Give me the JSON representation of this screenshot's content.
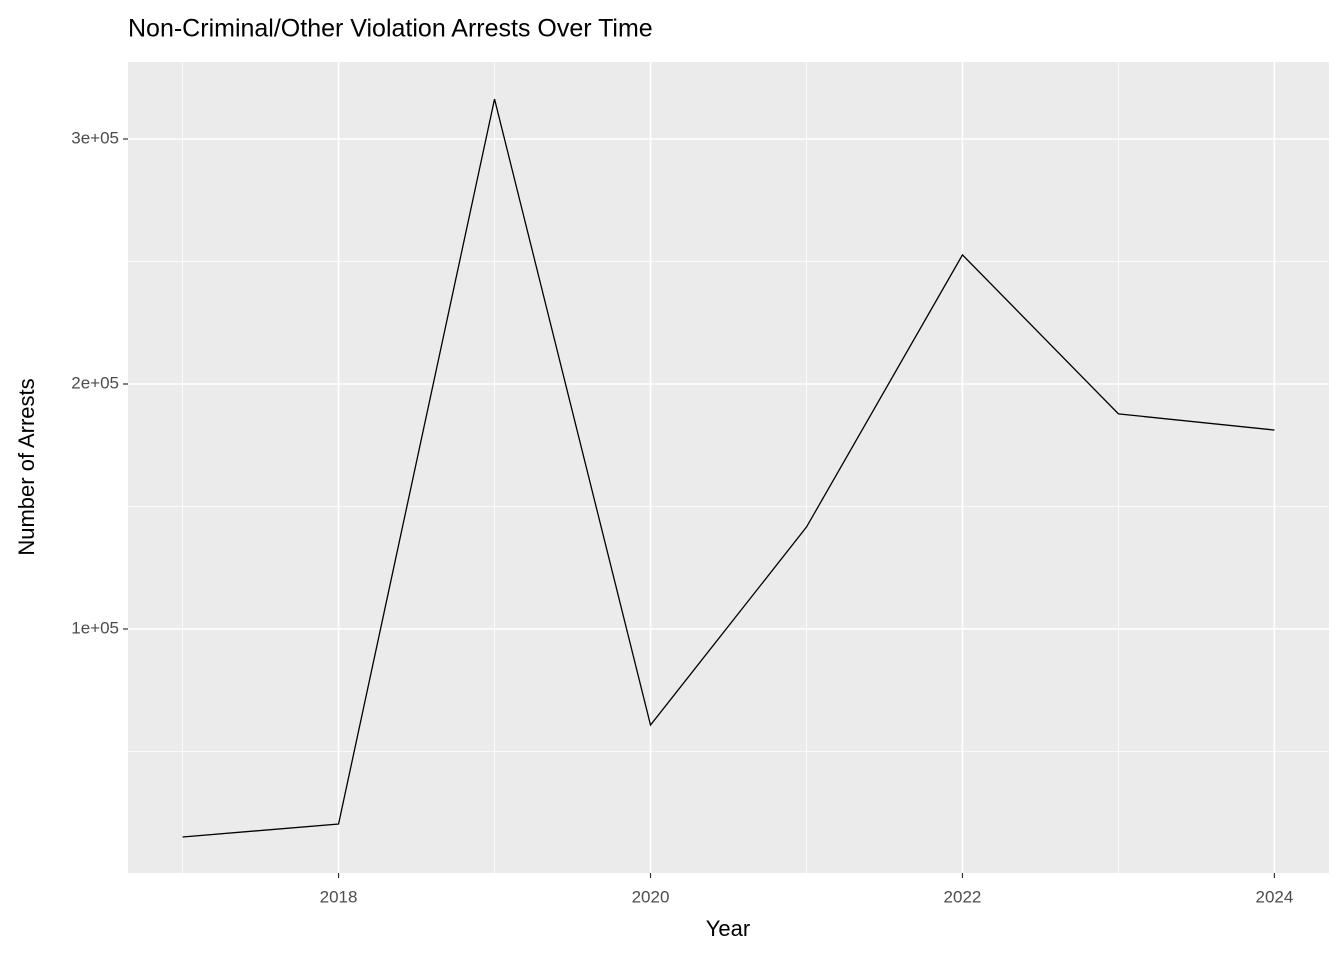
{
  "chart_data": {
    "type": "line",
    "title": "Non-Criminal/Other Violation Arrests Over Time",
    "x_label": "Year",
    "y_label": "Number of Arrests",
    "x": [
      2017,
      2018,
      2019,
      2020,
      2021,
      2022,
      2023,
      2024
    ],
    "series": [
      {
        "color": "#000000",
        "values": [
          15100,
          20400,
          316300,
          60800,
          141600,
          252700,
          187800,
          181200
        ]
      }
    ],
    "xlim": [
      2016.65,
      2024.35
    ],
    "xticks": [
      2018,
      2020,
      2022,
      2024
    ],
    "xminor": [
      2017,
      2019,
      2021,
      2023
    ],
    "ylim": [
      400,
      331429
    ],
    "yticks": [
      {
        "value": 100000,
        "label": "1e+05"
      },
      {
        "value": 200000,
        "label": "2e+05"
      },
      {
        "value": 300000,
        "label": "3e+05"
      }
    ],
    "yminor": [
      50000,
      150000,
      250000
    ],
    "grid": true
  }
}
